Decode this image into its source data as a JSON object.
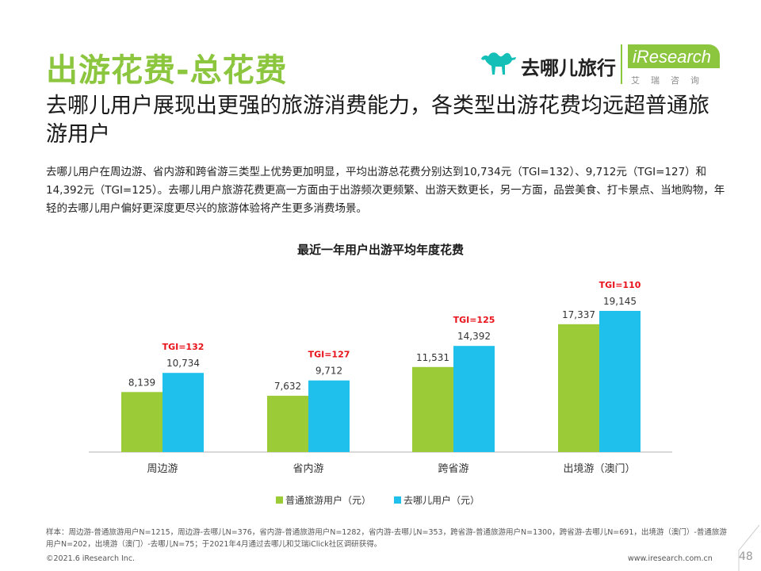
{
  "header": {
    "title": "出游花费-总花费",
    "qunar_logo_text": "去哪儿旅行",
    "iresearch_logo_text": "iResearch",
    "iresearch_sub": "艾瑞咨询"
  },
  "subtitle": "去哪儿用户展现出更强的旅游消费能力，各类型出游花费均远超普通旅游用户",
  "description": "去哪儿用户在周边游、省内游和跨省游三类型上优势更加明显，平均出游总花费分别达到10,734元（TGI=132）、9,712元（TGI=127）和14,392元（TGI=125）。去哪儿用户旅游花费更高一方面由于出游频次更频繁、出游天数更长，另一方面，品尝美食、打卡景点、当地购物，年轻的去哪儿用户偏好更深度更尽兴的旅游体验将产生更多消费场景。",
  "chart_data": {
    "type": "bar",
    "title": "最近一年用户出游平均年度花费",
    "categories": [
      "周边游",
      "省内游",
      "跨省游",
      "出境游（澳门）"
    ],
    "series": [
      {
        "name": "普通旅游用户（元）",
        "values": [
          8139,
          7632,
          11531,
          17337
        ],
        "labels": [
          "8,139",
          "7,632",
          "11,531",
          "17,337"
        ],
        "color": "#9ccb38"
      },
      {
        "name": "去哪儿用户（元）",
        "values": [
          10734,
          9712,
          14392,
          19145
        ],
        "labels": [
          "10,734",
          "9,712",
          "14,392",
          "19,145"
        ],
        "color": "#1fc0ec"
      }
    ],
    "tgi": [
      "TGI=132",
      "TGI=127",
      "TGI=125",
      "TGI=110"
    ],
    "tgi_color": "#e8121b",
    "ylim": [
      0,
      22000
    ],
    "grid": false,
    "legend_position": "bottom"
  },
  "footer": {
    "footnote": "样本：周边游-普通旅游用户N=1215，周边游-去哪儿N=376，省内游-普通旅游用户N=1282，省内游-去哪儿N=353，跨省游-普通旅游用户N=1300，跨省游-去哪儿N=691，出境游（澳门）-普通旅游用户N=202，出境游（澳门）-去哪儿N=75；于2021年4月通过去哪儿和艾瑞iClick社区调研获得。",
    "copyright": "©2021.6 iResearch Inc.",
    "website": "www.iresearch.com.cn",
    "page_number": "48"
  }
}
